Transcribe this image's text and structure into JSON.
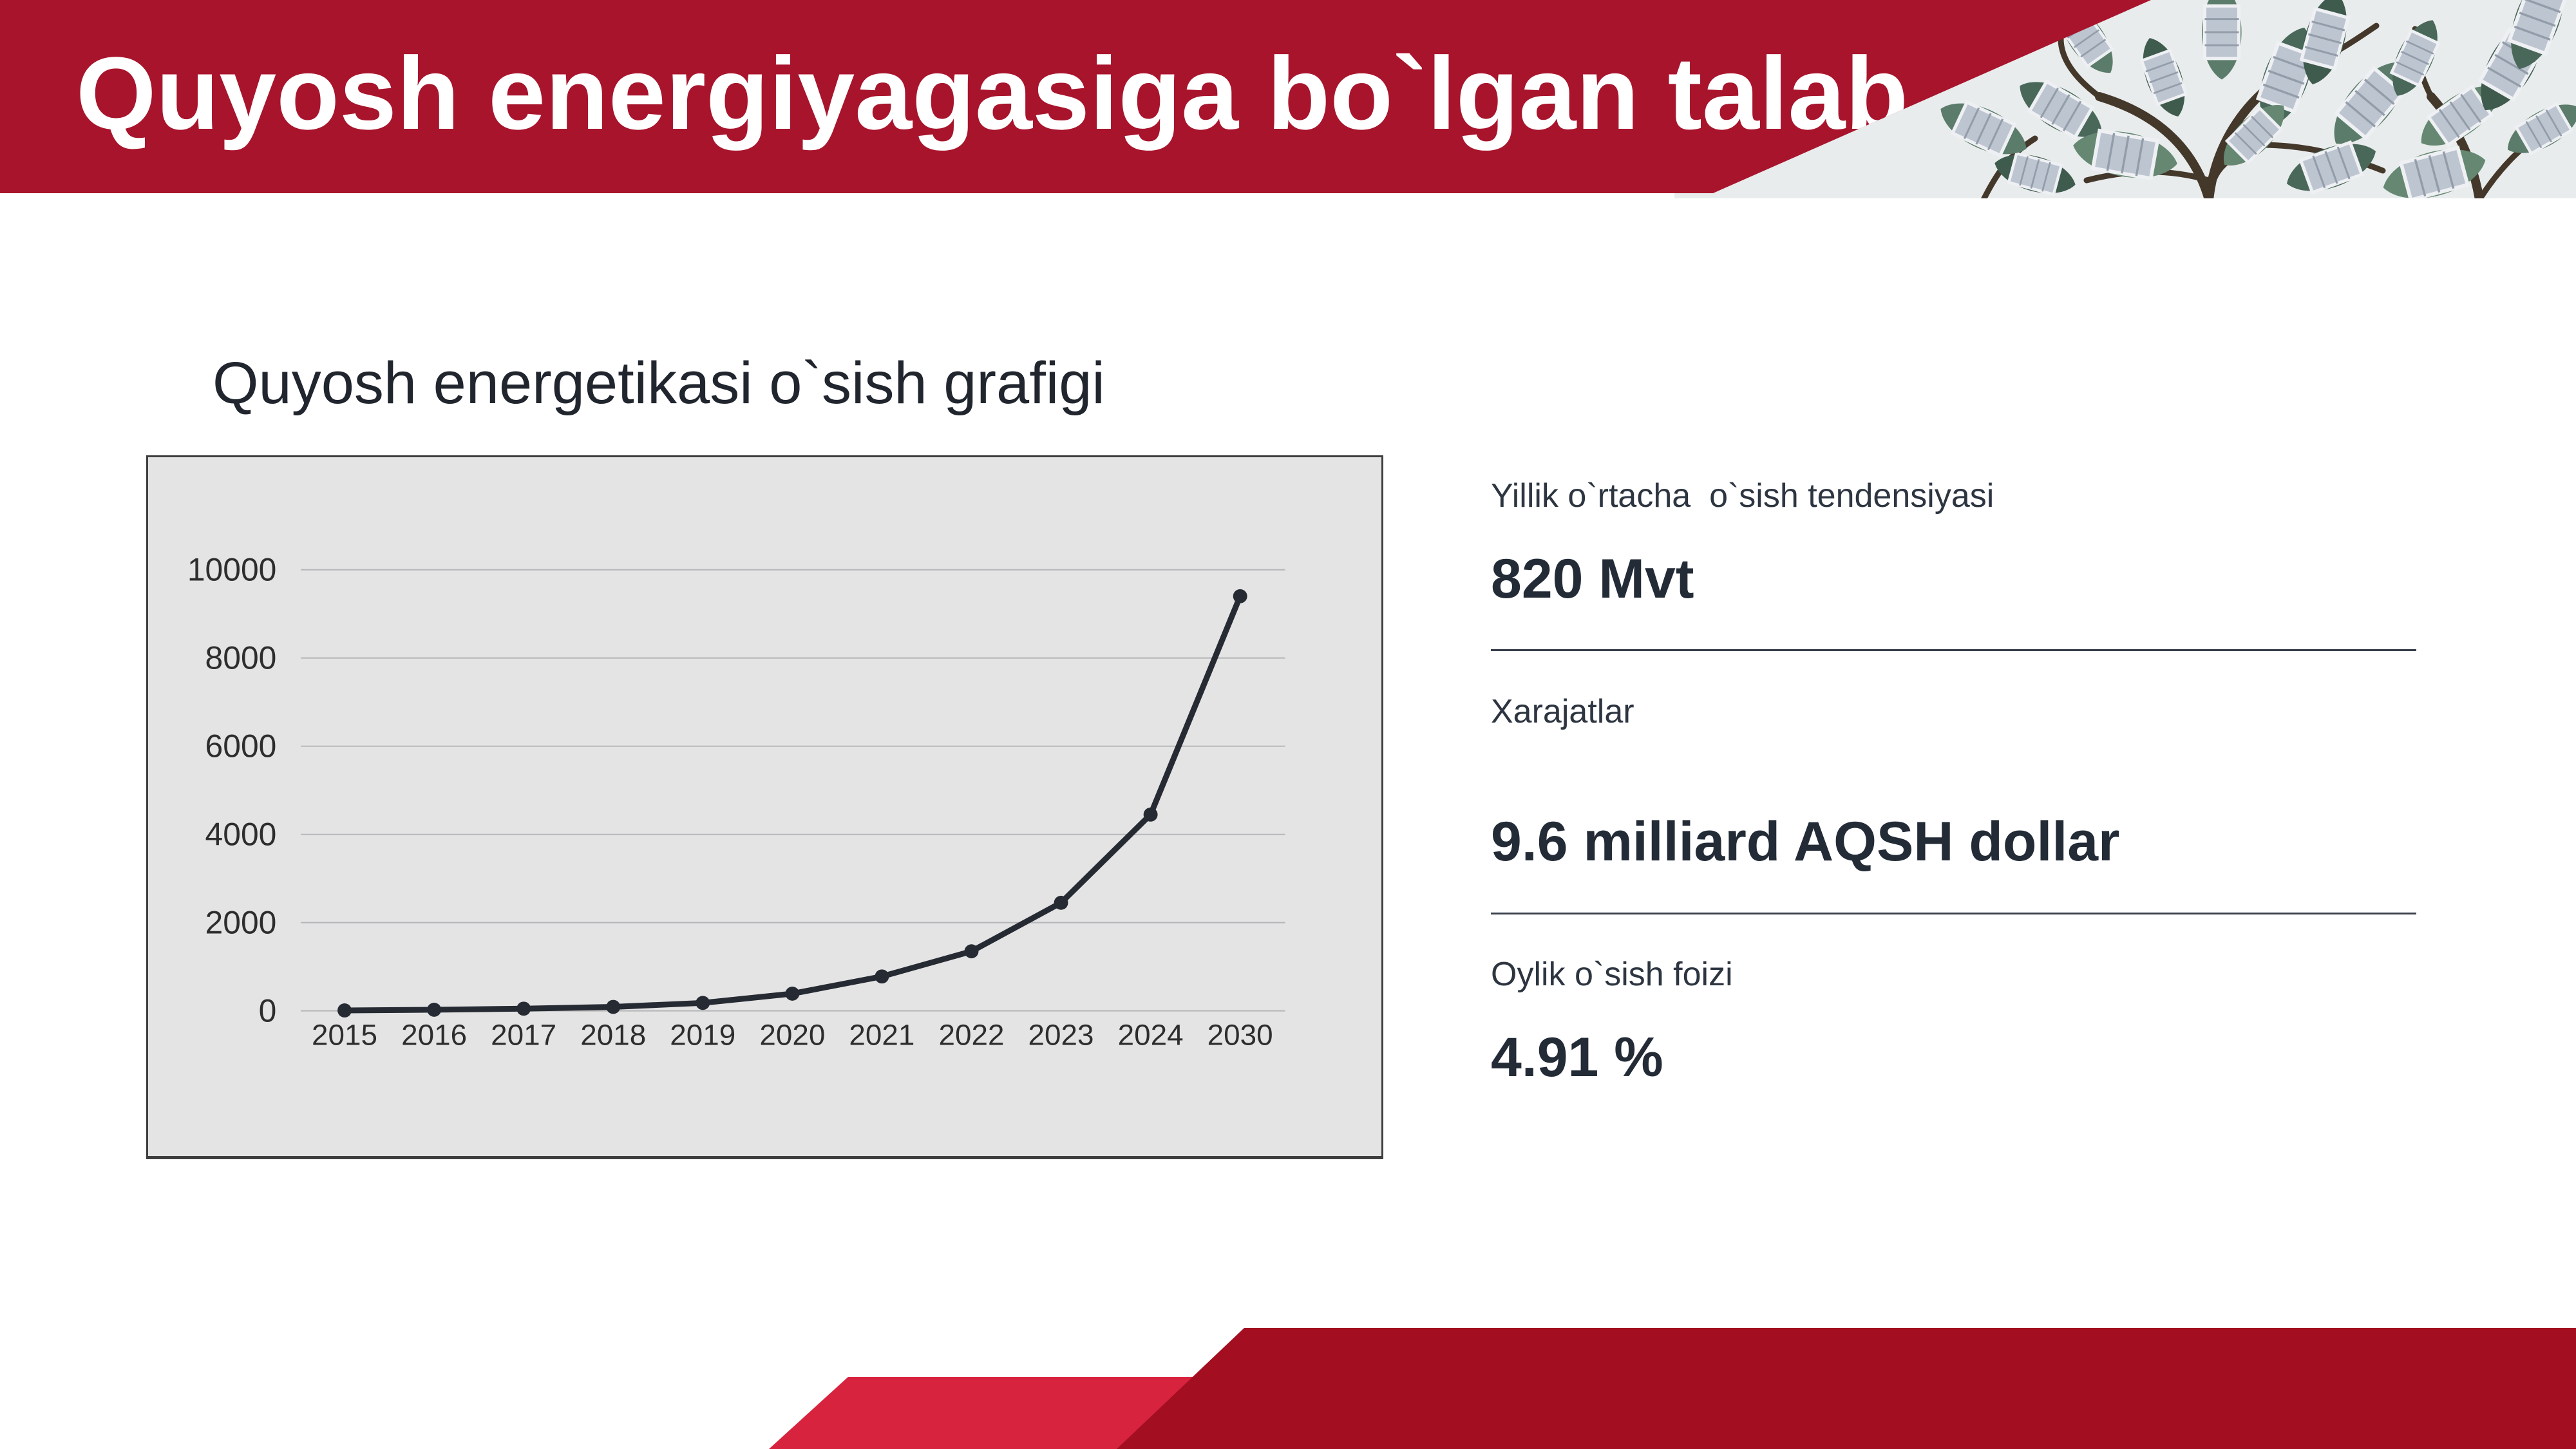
{
  "slide_title": "Quyosh energiyagasiga bo`lgan talab",
  "chart_section": {
    "title": "Quyosh energetikasi o`sish grafigi"
  },
  "chart_data": {
    "type": "line",
    "title": "Quyosh energetikasi o`sish grafigi",
    "categories": [
      "2015",
      "2016",
      "2017",
      "2018",
      "2019",
      "2020",
      "2021",
      "2022",
      "2023",
      "2024",
      "2030"
    ],
    "values": [
      10,
      25,
      50,
      90,
      180,
      390,
      780,
      1350,
      2450,
      4450,
      9400
    ],
    "xlabel": "",
    "ylabel": "",
    "ylim": [
      0,
      10000
    ],
    "ytick_step": 2000,
    "yticks": [
      "0",
      "2000",
      "4000",
      "6000",
      "8000",
      "10000"
    ],
    "grid": true,
    "legend": false,
    "marker": "circle"
  },
  "stats": [
    {
      "label": "Yillik o`rtacha  o`sish tendensiyasi",
      "value": "820 Mvt"
    },
    {
      "label": "Xarajatlar",
      "value": "9.6 milliard AQSH dollar"
    },
    {
      "label": "Oylik o`sish foizi",
      "value": "4.91 %"
    }
  ],
  "colors": {
    "banner_red": "#a8142c",
    "decor_dark_red": "#a30e21",
    "decor_light_red": "#d8233e",
    "chart_bg": "#e4e4e5",
    "chart_border": "#3f3f3f",
    "grid_line": "#b5b6b7",
    "line_color": "#262b33",
    "tick_text": "#2d2d2d",
    "title_text": "#ffffff",
    "body_text": "#2d3541"
  },
  "photo": {
    "subject": "solar-panel-tree",
    "sky": "#e9eced",
    "leaf_greens": [
      "#5b7c6a",
      "#49685a",
      "#668872",
      "#3f5b4e"
    ],
    "panel": "#bdc5d0",
    "panel_frame": "#eef0f3",
    "panel_lines": "#939daa",
    "branch": "#44382b"
  }
}
